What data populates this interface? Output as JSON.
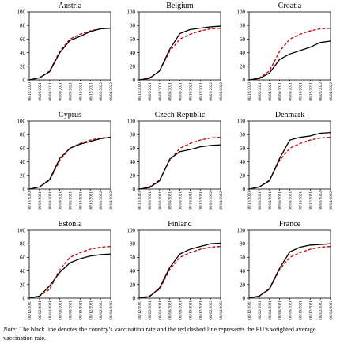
{
  "x_tick_labels": [
    "08/12/2020",
    "08/02/2021",
    "08/04/2021",
    "08/06/2021",
    "08/08/2021",
    "08/10/2021",
    "08/12/2021",
    "08/02/2022",
    "08/04/2022"
  ],
  "y_tick_labels": [
    "0",
    "20",
    "40",
    "60",
    "80",
    "100"
  ],
  "note_label": "Note:",
  "note_text": "The black line denotes the country’s vaccination rate and the red dashed line represents the EU’s weighted average vaccination rate.",
  "colors": {
    "country": "#000000",
    "eu": "#c00000"
  },
  "chart_data": [
    {
      "type": "line",
      "title": "Austria",
      "ylim": [
        0,
        100
      ],
      "x": [
        "08/12/2020",
        "08/02/2021",
        "08/04/2021",
        "08/06/2021",
        "08/08/2021",
        "08/10/2021",
        "08/12/2021",
        "08/02/2022",
        "08/04/2022"
      ],
      "series": [
        {
          "values": [
            0,
            3,
            12,
            40,
            58,
            64,
            71,
            75,
            76
          ]
        },
        {
          "values": [
            0,
            3,
            13,
            42,
            60,
            67,
            72,
            75,
            76
          ]
        }
      ]
    },
    {
      "type": "line",
      "title": "Belgium",
      "ylim": [
        0,
        100
      ],
      "x": [
        "08/12/2020",
        "08/02/2021",
        "08/04/2021",
        "08/06/2021",
        "08/08/2021",
        "08/10/2021",
        "08/12/2021",
        "08/02/2022",
        "08/04/2022"
      ],
      "series": [
        {
          "values": [
            0,
            2,
            13,
            45,
            68,
            74,
            76,
            78,
            79
          ]
        },
        {
          "values": [
            0,
            3,
            13,
            42,
            60,
            67,
            72,
            75,
            76
          ]
        }
      ]
    },
    {
      "type": "line",
      "title": "Croatia",
      "ylim": [
        0,
        100
      ],
      "x": [
        "08/12/2020",
        "08/02/2021",
        "08/04/2021",
        "08/06/2021",
        "08/08/2021",
        "08/10/2021",
        "08/12/2021",
        "08/02/2022",
        "08/04/2022"
      ],
      "series": [
        {
          "values": [
            0,
            2,
            10,
            30,
            38,
            43,
            48,
            55,
            57
          ]
        },
        {
          "values": [
            0,
            3,
            13,
            42,
            60,
            67,
            72,
            75,
            76
          ]
        }
      ]
    },
    {
      "type": "line",
      "title": "Cyprus",
      "ylim": [
        0,
        100
      ],
      "x": [
        "08/12/2020",
        "08/02/2021",
        "08/04/2021",
        "08/06/2021",
        "08/08/2021",
        "08/10/2021",
        "08/12/2021",
        "08/02/2022",
        "08/04/2022"
      ],
      "series": [
        {
          "values": [
            0,
            3,
            14,
            45,
            60,
            66,
            70,
            74,
            76
          ]
        },
        {
          "values": [
            0,
            3,
            13,
            42,
            60,
            67,
            72,
            75,
            76
          ]
        }
      ]
    },
    {
      "type": "line",
      "title": "Czech Republic",
      "ylim": [
        0,
        100
      ],
      "x": [
        "08/12/2020",
        "08/02/2021",
        "08/04/2021",
        "08/06/2021",
        "08/08/2021",
        "08/10/2021",
        "08/12/2021",
        "08/02/2022",
        "08/04/2022"
      ],
      "series": [
        {
          "values": [
            0,
            2,
            12,
            44,
            55,
            58,
            62,
            64,
            65
          ]
        },
        {
          "values": [
            0,
            3,
            13,
            42,
            60,
            67,
            72,
            75,
            76
          ]
        }
      ]
    },
    {
      "type": "line",
      "title": "Denmark",
      "ylim": [
        0,
        100
      ],
      "x": [
        "08/12/2020",
        "08/02/2021",
        "08/04/2021",
        "08/06/2021",
        "08/08/2021",
        "08/10/2021",
        "08/12/2021",
        "08/02/2022",
        "08/04/2022"
      ],
      "series": [
        {
          "values": [
            0,
            3,
            12,
            45,
            72,
            76,
            78,
            82,
            83
          ]
        },
        {
          "values": [
            0,
            3,
            13,
            42,
            60,
            67,
            72,
            75,
            76
          ]
        }
      ]
    },
    {
      "type": "line",
      "title": "Estonia",
      "ylim": [
        0,
        100
      ],
      "x": [
        "08/12/2020",
        "08/02/2021",
        "08/04/2021",
        "08/06/2021",
        "08/08/2021",
        "08/10/2021",
        "08/12/2021",
        "08/02/2022",
        "08/04/2022"
      ],
      "series": [
        {
          "values": [
            0,
            3,
            18,
            38,
            52,
            58,
            62,
            64,
            65
          ]
        },
        {
          "values": [
            0,
            3,
            13,
            42,
            60,
            67,
            72,
            75,
            76
          ]
        }
      ]
    },
    {
      "type": "line",
      "title": "Finland",
      "ylim": [
        0,
        100
      ],
      "x": [
        "08/12/2020",
        "08/02/2021",
        "08/04/2021",
        "08/06/2021",
        "08/08/2021",
        "08/10/2021",
        "08/12/2021",
        "08/02/2022",
        "08/04/2022"
      ],
      "series": [
        {
          "values": [
            0,
            2,
            15,
            45,
            65,
            72,
            76,
            80,
            81
          ]
        },
        {
          "values": [
            0,
            3,
            13,
            42,
            60,
            67,
            72,
            75,
            76
          ]
        }
      ]
    },
    {
      "type": "line",
      "title": "France",
      "ylim": [
        0,
        100
      ],
      "x": [
        "08/12/2020",
        "08/02/2021",
        "08/04/2021",
        "08/06/2021",
        "08/08/2021",
        "08/10/2021",
        "08/12/2021",
        "08/02/2022",
        "08/04/2022"
      ],
      "series": [
        {
          "values": [
            0,
            3,
            14,
            44,
            68,
            75,
            78,
            79,
            80
          ]
        },
        {
          "values": [
            0,
            3,
            13,
            42,
            60,
            67,
            72,
            75,
            76
          ]
        }
      ]
    }
  ]
}
